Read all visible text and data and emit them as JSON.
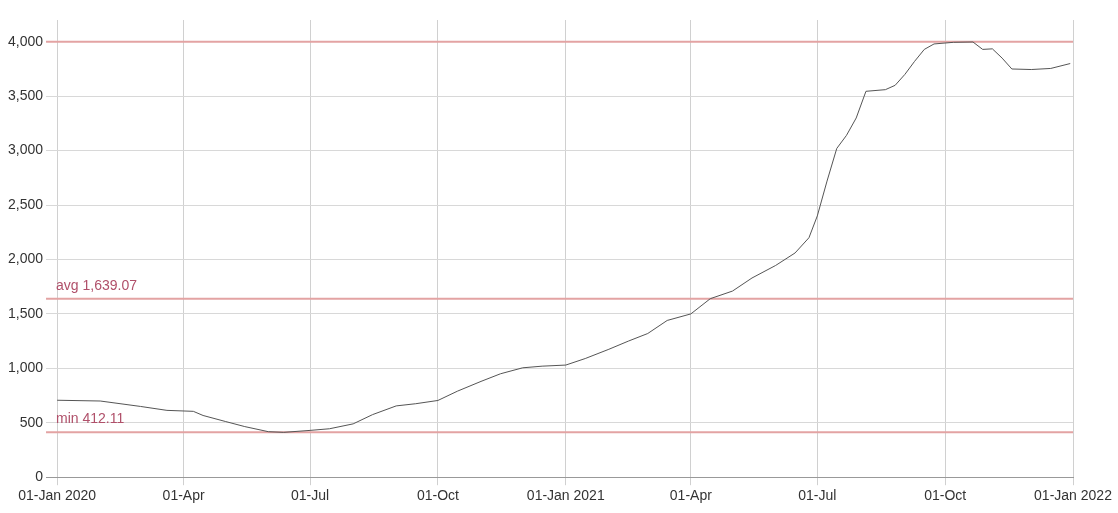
{
  "chart_data": {
    "type": "line",
    "x": [
      "2020-01-01",
      "2020-02-01",
      "2020-03-01",
      "2020-03-20",
      "2020-04-08",
      "2020-04-15",
      "2020-05-01",
      "2020-05-15",
      "2020-06-01",
      "2020-06-12",
      "2020-07-01",
      "2020-07-15",
      "2020-08-01",
      "2020-08-15",
      "2020-09-01",
      "2020-09-15",
      "2020-10-01",
      "2020-10-15",
      "2020-11-01",
      "2020-11-15",
      "2020-12-01",
      "2020-12-15",
      "2021-01-01",
      "2021-01-15",
      "2021-02-01",
      "2021-02-15",
      "2021-03-01",
      "2021-03-15",
      "2021-04-01",
      "2021-04-15",
      "2021-05-01",
      "2021-05-15",
      "2021-06-01",
      "2021-06-15",
      "2021-06-25",
      "2021-07-01",
      "2021-07-08",
      "2021-07-15",
      "2021-07-22",
      "2021-07-29",
      "2021-08-05",
      "2021-08-19",
      "2021-08-26",
      "2021-09-02",
      "2021-09-09",
      "2021-09-16",
      "2021-09-23",
      "2021-10-07",
      "2021-10-21",
      "2021-10-28",
      "2021-11-04",
      "2021-11-11",
      "2021-11-18",
      "2021-12-02",
      "2021-12-16",
      "2021-12-30"
    ],
    "series": [
      {
        "color": "#555555",
        "values": [
          707,
          700,
          650,
          614,
          605,
          567,
          512,
          465,
          418,
          412,
          430,
          445,
          490,
          575,
          655,
          675,
          705,
          790,
          880,
          950,
          1005,
          1020,
          1030,
          1090,
          1175,
          1250,
          1320,
          1440,
          1500,
          1640,
          1710,
          1830,
          1945,
          2060,
          2200,
          2400,
          2720,
          3020,
          3140,
          3300,
          3545,
          3560,
          3600,
          3700,
          3820,
          3930,
          3980,
          3995,
          3998,
          3930,
          3935,
          3850,
          3750,
          3745,
          3755,
          3800
        ]
      }
    ],
    "xlim": [
      "2019-12-24",
      "2022-01-01"
    ],
    "xticks": [
      {
        "value": "2020-01-01",
        "label": "01-Jan 2020"
      },
      {
        "value": "2020-04-01",
        "label": "01-Apr"
      },
      {
        "value": "2020-07-01",
        "label": "01-Jul"
      },
      {
        "value": "2020-10-01",
        "label": "01-Oct"
      },
      {
        "value": "2021-01-01",
        "label": "01-Jan 2021"
      },
      {
        "value": "2021-04-01",
        "label": "01-Apr"
      },
      {
        "value": "2021-07-01",
        "label": "01-Jul"
      },
      {
        "value": "2021-10-01",
        "label": "01-Oct"
      },
      {
        "value": "2022-01-01",
        "label": "01-Jan 2022"
      }
    ],
    "ylim": [
      0,
      4200
    ],
    "yticks": [
      0,
      500,
      {
        "value": 1000,
        "label": "1,000"
      },
      {
        "value": 1500,
        "label": "1,500"
      },
      {
        "value": 2000,
        "label": "2,000"
      },
      {
        "value": 2500,
        "label": "2,500"
      },
      {
        "value": 3000,
        "label": "3,000"
      },
      {
        "value": 3500,
        "label": "3,500"
      },
      {
        "value": 4000,
        "label": "4,000"
      }
    ],
    "ref_lines": [
      {
        "axis": "y",
        "value": 4000,
        "color": "#e3a3a3"
      },
      {
        "axis": "y",
        "value": 1639.07,
        "label": "avg 1,639.07",
        "color": "#e3a3a3"
      },
      {
        "axis": "y",
        "value": 412.11,
        "label": "min 412.11",
        "color": "#e3a3a3"
      }
    ],
    "grid": true,
    "legend": false,
    "marker": "none",
    "line_style": "solid"
  }
}
